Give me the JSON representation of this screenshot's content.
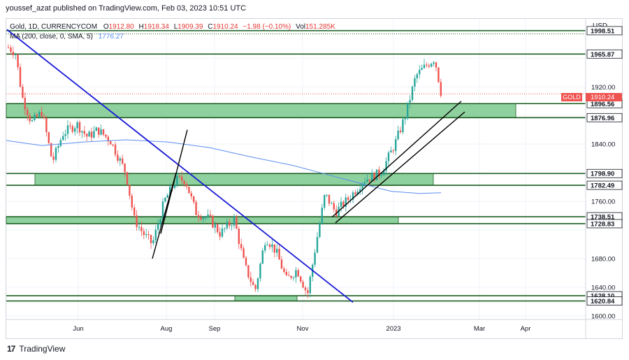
{
  "header": {
    "publisher_line": "youssef_azat published on TradingView.com, Feb 03, 2023 10:51 UTC"
  },
  "legend": {
    "symbol": "Gold, 1D, CURRENCYCOM",
    "open_label": "O",
    "open": "1912.80",
    "high_label": "H",
    "high": "1918.34",
    "low_label": "L",
    "low": "1909.39",
    "close_label": "C",
    "close": "1910.24",
    "change": "−1.98 (−0.10%)",
    "vol_label": "Vol",
    "volume": "151.285K",
    "ma_label": "MA (200, close, 0, SMA, 5)",
    "ma_value": "1776.27"
  },
  "axis": {
    "currency": "USD"
  },
  "price_tag": {
    "symbol": "GOLD",
    "value": "1910.24"
  },
  "footer": {
    "brand": "TradingView",
    "logo": "17"
  },
  "colors": {
    "up": "#26a69a",
    "down": "#ef5350",
    "zone_fill": "#8fd19e",
    "zone_line": "#1b5e20",
    "diag_line": "#1a1ad6",
    "channel_line": "#000000",
    "ma_line": "#5b8def"
  },
  "chart_data": {
    "type": "candlestick",
    "y_range": [
      1595,
      2015
    ],
    "y_ticks": [
      1600,
      1640,
      1680,
      1720,
      1760,
      1800,
      1840,
      1880,
      1920,
      1960,
      2000
    ],
    "y_tick_labels": [
      "1600.00",
      "1640.00",
      "1680.00",
      "",
      "1760.00",
      "",
      "1840.00",
      "",
      "1920.00",
      "",
      ""
    ],
    "x_labels": [
      "Jun",
      "Aug",
      "Sep",
      "Nov",
      "2023",
      "Mar",
      "Apr"
    ],
    "level_lines": [
      {
        "value": 1998.51,
        "label": "1998.51"
      },
      {
        "value": 1965.87,
        "label": "1965.87"
      },
      {
        "value": 1896.56,
        "label": "1896.56"
      },
      {
        "value": 1876.96,
        "label": "1876.96"
      },
      {
        "value": 1798.9,
        "label": "1798.90"
      },
      {
        "value": 1782.49,
        "label": "1782.49"
      },
      {
        "value": 1738.51,
        "label": "1738.51"
      },
      {
        "value": 1728.83,
        "label": "1728.83"
      },
      {
        "value": 1628.1,
        "label": "1628.10"
      },
      {
        "value": 1620.84,
        "label": "1620.84"
      }
    ],
    "zones": [
      {
        "from": 1876.96,
        "to": 1896.56
      },
      {
        "from": 1782.49,
        "to": 1798.9
      },
      {
        "from": 1728.83,
        "to": 1738.51
      },
      {
        "from": 1620.84,
        "to": 1628.1
      }
    ],
    "ma_value": 1776.27,
    "last_close": 1910.24
  }
}
